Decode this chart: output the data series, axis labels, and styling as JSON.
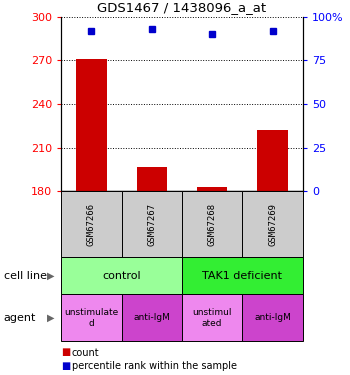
{
  "title": "GDS1467 / 1438096_a_at",
  "samples": [
    "GSM67266",
    "GSM67267",
    "GSM67268",
    "GSM67269"
  ],
  "bar_values": [
    271,
    197,
    183,
    222
  ],
  "dot_values_pct": [
    92,
    93,
    90,
    92
  ],
  "ylim_left": [
    180,
    300
  ],
  "ylim_right": [
    0,
    100
  ],
  "yticks_left": [
    180,
    210,
    240,
    270,
    300
  ],
  "yticks_right": [
    0,
    25,
    50,
    75,
    100
  ],
  "bar_color": "#cc0000",
  "dot_color": "#0000cc",
  "cell_line_labels": [
    "control",
    "TAK1 deficient"
  ],
  "cell_line_spans": [
    [
      0,
      2
    ],
    [
      2,
      4
    ]
  ],
  "cell_line_colors": [
    "#99ff99",
    "#33ee33"
  ],
  "agent_labels": [
    "unstimulate\nd",
    "anti-IgM",
    "unstimul\nated",
    "anti-IgM"
  ],
  "agent_colors": [
    "#ee88ee",
    "#cc44cc",
    "#ee88ee",
    "#cc44cc"
  ],
  "legend_count_label": "count",
  "legend_pct_label": "percentile rank within the sample",
  "xlabel_cell_line": "cell line",
  "xlabel_agent": "agent",
  "gsm_bg": "#cccccc"
}
